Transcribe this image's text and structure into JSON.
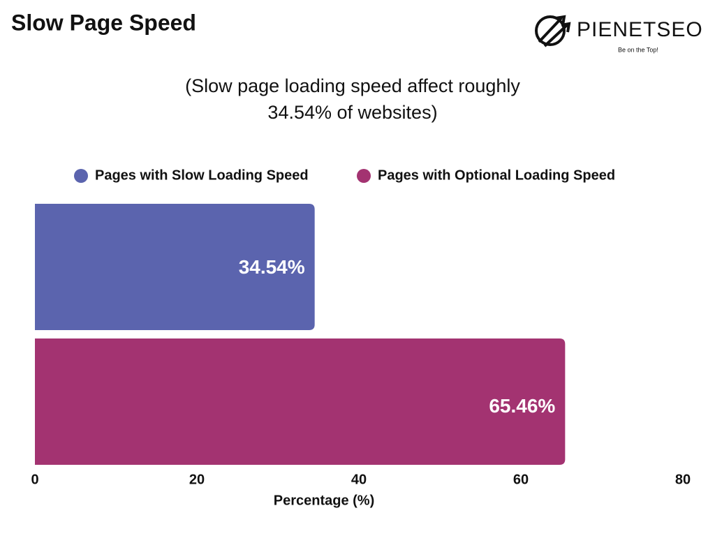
{
  "chart_data": {
    "type": "bar",
    "orientation": "horizontal",
    "title": "Slow Page Speed",
    "subtitle": "(Slow page loading speed affect roughly 34.54% of websites)",
    "xlabel": "Percentage (%)",
    "series": [
      {
        "name": "Pages with Slow Loading Speed",
        "color": "#5b64ae",
        "values": [
          34.54
        ],
        "value_labels": [
          "34.54%"
        ]
      },
      {
        "name": "Pages with Optional Loading Speed",
        "color": "#a33371",
        "values": [
          65.46
        ],
        "value_labels": [
          "65.46%"
        ]
      }
    ],
    "xlim": [
      0,
      80
    ],
    "xticks": [
      0,
      20,
      40,
      60,
      80
    ],
    "legend": "top"
  },
  "logo": {
    "name": "PIENETSEO",
    "tagline": "Be on the Top!"
  }
}
